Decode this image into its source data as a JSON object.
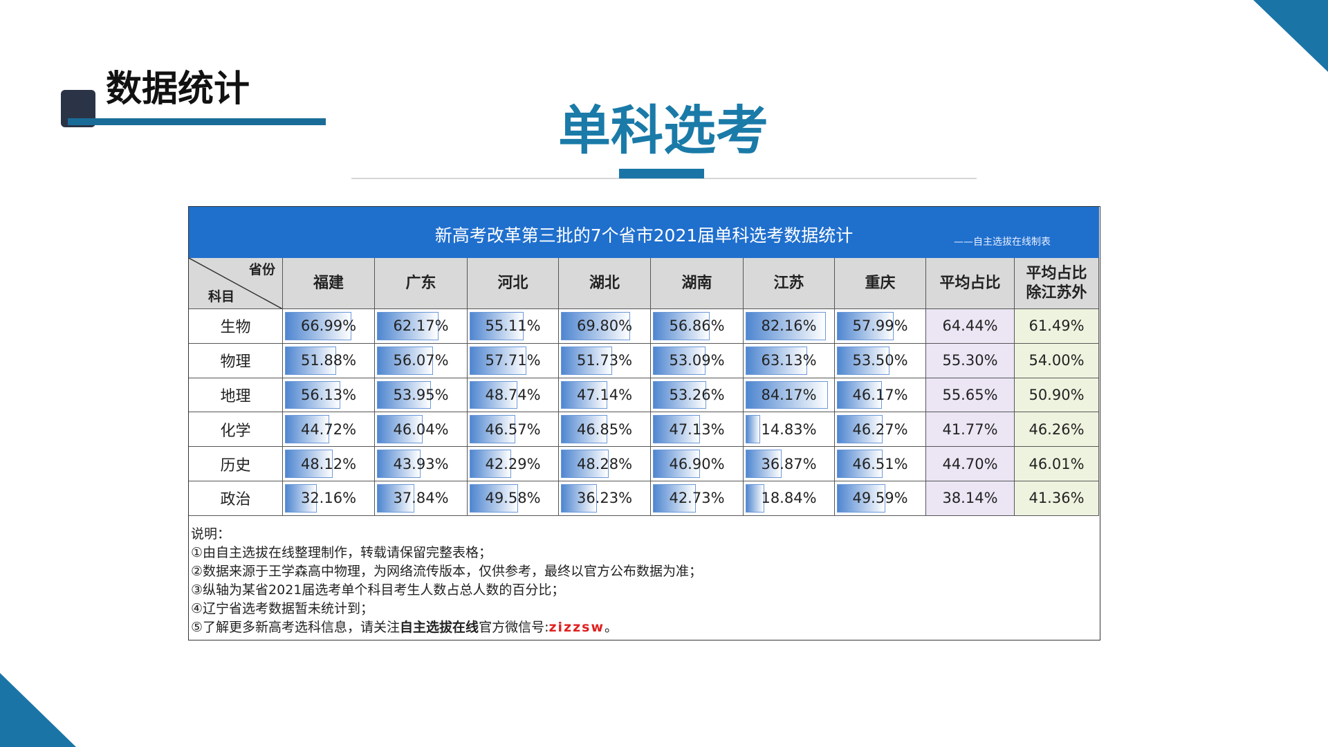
{
  "header": {
    "section_title": "数据统计",
    "title": "单科选考"
  },
  "table": {
    "caption": "新高考改革第三批的7个省市2021届单科选考数据统计",
    "credit": "——自主选拔在线制表",
    "corner_top": "省份",
    "corner_bottom": "科目",
    "columns": [
      "福建",
      "广东",
      "河北",
      "湖北",
      "湖南",
      "江苏",
      "重庆",
      "平均占比",
      "平均占比\n除江苏外"
    ],
    "rows": [
      [
        "生物",
        "66.99%",
        "62.17%",
        "55.11%",
        "69.80%",
        "56.86%",
        "82.16%",
        "57.99%",
        "64.44%",
        "61.49%"
      ],
      [
        "物理",
        "51.88%",
        "56.07%",
        "57.71%",
        "51.73%",
        "53.09%",
        "63.13%",
        "53.50%",
        "55.30%",
        "54.00%"
      ],
      [
        "地理",
        "56.13%",
        "53.95%",
        "48.74%",
        "47.14%",
        "53.26%",
        "84.17%",
        "46.17%",
        "55.65%",
        "50.90%"
      ],
      [
        "化学",
        "44.72%",
        "46.04%",
        "46.57%",
        "46.85%",
        "47.13%",
        "14.83%",
        "46.27%",
        "41.77%",
        "46.26%"
      ],
      [
        "历史",
        "48.12%",
        "43.93%",
        "42.29%",
        "48.28%",
        "46.90%",
        "36.87%",
        "46.51%",
        "44.70%",
        "46.01%"
      ],
      [
        "政治",
        "32.16%",
        "37.84%",
        "49.58%",
        "36.23%",
        "42.73%",
        "18.84%",
        "49.59%",
        "38.14%",
        "41.36%"
      ]
    ]
  },
  "notes": {
    "heading": "说明：",
    "items": [
      "①由自主选拔在线整理制作，转载请保留完整表格；",
      "②数据来源于王学森高中物理，为网络流传版本，仅供参考，最终以官方公布数据为准；",
      "③纵轴为某省2021届选考单个科目考生人数占总人数的百分比；",
      "④辽宁省选考数据暂未统计到；"
    ],
    "last": {
      "lead": "⑤了解更多新高考选科信息，请关注",
      "bold": "自主选拔在线",
      "middle": "官方微信号:",
      "wechat": "zizzsw",
      "end": "。"
    }
  }
}
